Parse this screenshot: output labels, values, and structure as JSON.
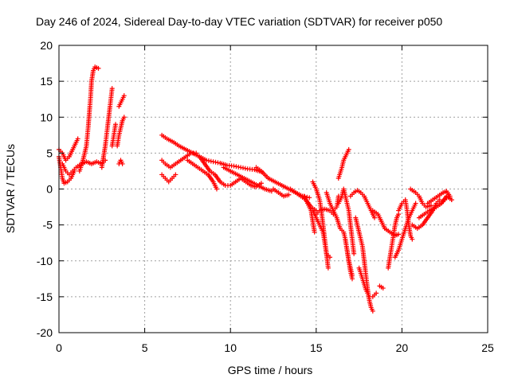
{
  "chart_data": {
    "type": "scatter",
    "title": "Day 246 of 2024, Sidereal Day-to-day VTEC variation (SDTVAR) for receiver p050",
    "xlabel": "GPS time / hours",
    "ylabel": "SDTVAR / TECUs",
    "xlim": [
      0,
      25
    ],
    "ylim": [
      -20,
      20
    ],
    "xticks": [
      "0",
      "5",
      "10",
      "15",
      "20",
      "25"
    ],
    "yticks": [
      "20",
      "15",
      "10",
      "5",
      "0",
      "-5",
      "-10",
      "-15",
      "-20"
    ],
    "grid": true,
    "marker": "plus",
    "color": "#ff0000",
    "series": [
      {
        "values": [
          [
            0.0,
            4.5
          ],
          [
            0.1,
            3.0
          ],
          [
            0.2,
            1.5
          ],
          [
            0.3,
            0.8
          ],
          [
            0.5,
            1.0
          ],
          [
            0.7,
            1.5
          ],
          [
            0.9,
            2.5
          ]
        ]
      },
      {
        "values": [
          [
            0.0,
            5.5
          ],
          [
            0.2,
            5.0
          ],
          [
            0.4,
            4.0
          ],
          [
            0.6,
            4.5
          ],
          [
            0.8,
            5.5
          ],
          [
            1.0,
            6.5
          ],
          [
            1.1,
            7.0
          ]
        ]
      },
      {
        "values": [
          [
            0.2,
            3.5
          ],
          [
            0.4,
            2.5
          ],
          [
            0.6,
            2.0
          ],
          [
            0.8,
            2.5
          ],
          [
            1.0,
            3.0
          ],
          [
            1.3,
            3.5
          ],
          [
            1.6,
            3.8
          ],
          [
            1.9,
            3.5
          ],
          [
            2.2,
            3.8
          ],
          [
            2.5,
            3.5
          ],
          [
            2.7,
            4.0
          ]
        ]
      },
      {
        "values": [
          [
            1.2,
            2.5
          ],
          [
            1.4,
            4.0
          ],
          [
            1.6,
            6.0
          ],
          [
            1.7,
            8.5
          ],
          [
            1.8,
            11.5
          ],
          [
            1.85,
            13.0
          ],
          [
            1.9,
            15.0
          ],
          [
            2.0,
            16.5
          ],
          [
            2.1,
            17.0
          ],
          [
            2.3,
            16.8
          ]
        ]
      },
      {
        "values": [
          [
            2.5,
            3.0
          ],
          [
            2.6,
            4.5
          ],
          [
            2.7,
            6.0
          ],
          [
            2.8,
            8.0
          ],
          [
            2.9,
            10.0
          ],
          [
            3.0,
            12.0
          ],
          [
            3.1,
            14.0
          ]
        ]
      },
      {
        "values": [
          [
            3.1,
            6.0
          ],
          [
            3.2,
            7.5
          ],
          [
            3.3,
            9.0
          ]
        ]
      },
      {
        "values": [
          [
            3.4,
            6.0
          ],
          [
            3.5,
            7.5
          ],
          [
            3.6,
            8.5
          ],
          [
            3.7,
            9.5
          ],
          [
            3.8,
            10.0
          ]
        ]
      },
      {
        "values": [
          [
            3.5,
            11.5
          ],
          [
            3.6,
            12.0
          ],
          [
            3.7,
            12.5
          ],
          [
            3.8,
            13.0
          ]
        ]
      },
      {
        "values": [
          [
            3.5,
            3.5
          ],
          [
            3.6,
            4.0
          ],
          [
            3.7,
            3.5
          ]
        ]
      },
      {
        "values": [
          [
            6.0,
            7.5
          ],
          [
            6.3,
            7.0
          ],
          [
            6.7,
            6.5
          ],
          [
            7.0,
            6.0
          ],
          [
            7.4,
            5.5
          ],
          [
            7.8,
            5.0
          ],
          [
            8.2,
            4.5
          ],
          [
            8.6,
            4.0
          ],
          [
            9.0,
            3.8
          ],
          [
            9.4,
            3.6
          ],
          [
            9.8,
            3.3
          ],
          [
            10.2,
            3.2
          ],
          [
            10.6,
            3.0
          ],
          [
            11.0,
            2.8
          ],
          [
            11.4,
            2.7
          ],
          [
            11.8,
            2.4
          ]
        ]
      },
      {
        "values": [
          [
            6.0,
            4.0
          ],
          [
            6.2,
            3.5
          ],
          [
            6.5,
            3.0
          ],
          [
            6.8,
            3.5
          ],
          [
            7.1,
            4.0
          ],
          [
            7.4,
            4.5
          ],
          [
            7.7,
            5.0
          ],
          [
            8.0,
            5.0
          ]
        ]
      },
      {
        "values": [
          [
            6.0,
            2.0
          ],
          [
            6.2,
            1.5
          ],
          [
            6.4,
            1.0
          ],
          [
            6.6,
            1.5
          ],
          [
            6.8,
            2.0
          ]
        ]
      },
      {
        "values": [
          [
            7.5,
            4.0
          ],
          [
            7.8,
            3.5
          ],
          [
            8.1,
            3.0
          ],
          [
            8.4,
            2.5
          ],
          [
            8.7,
            2.0
          ],
          [
            9.0,
            1.0
          ],
          [
            9.2,
            0.0
          ]
        ]
      },
      {
        "values": [
          [
            8.2,
            4.5
          ],
          [
            8.5,
            3.5
          ],
          [
            8.8,
            2.5
          ],
          [
            9.1,
            2.0
          ],
          [
            9.4,
            1.0
          ],
          [
            9.7,
            0.5
          ],
          [
            10.0,
            0.5
          ],
          [
            10.3,
            1.0
          ],
          [
            10.6,
            1.5
          ],
          [
            10.9,
            1.0
          ],
          [
            11.2,
            0.5
          ],
          [
            11.5,
            0.3
          ],
          [
            11.8,
            0.8
          ]
        ]
      },
      {
        "values": [
          [
            9.6,
            3.0
          ],
          [
            10.0,
            2.5
          ],
          [
            10.4,
            2.0
          ],
          [
            10.8,
            1.5
          ],
          [
            11.2,
            1.0
          ],
          [
            11.6,
            0.5
          ],
          [
            12.0,
            0.0
          ],
          [
            12.4,
            -0.3
          ]
        ]
      },
      {
        "values": [
          [
            11.5,
            3.0
          ],
          [
            11.8,
            2.5
          ],
          [
            12.2,
            1.5
          ],
          [
            12.6,
            1.0
          ],
          [
            13.0,
            0.5
          ],
          [
            13.4,
            0.0
          ],
          [
            13.8,
            -0.5
          ],
          [
            14.2,
            -1.0
          ],
          [
            14.6,
            -1.2
          ]
        ]
      },
      {
        "values": [
          [
            12.5,
            0.0
          ],
          [
            12.8,
            -0.5
          ],
          [
            13.1,
            -1.0
          ],
          [
            13.4,
            -0.8
          ]
        ]
      },
      {
        "values": [
          [
            13.5,
            0.0
          ],
          [
            13.8,
            -0.5
          ],
          [
            14.1,
            -1.0
          ],
          [
            14.4,
            -1.5
          ],
          [
            14.7,
            -2.5
          ],
          [
            15.0,
            -3.0
          ]
        ]
      },
      {
        "values": [
          [
            14.3,
            -1.0
          ],
          [
            14.5,
            -2.0
          ],
          [
            14.7,
            -3.0
          ],
          [
            14.8,
            -4.5
          ],
          [
            14.9,
            -6.0
          ]
        ]
      },
      {
        "values": [
          [
            14.8,
            -3.0
          ],
          [
            15.0,
            -4.0
          ],
          [
            15.2,
            -5.0
          ],
          [
            15.4,
            -6.0
          ],
          [
            15.5,
            -7.5
          ],
          [
            15.6,
            -9.0
          ],
          [
            15.7,
            -11.0
          ]
        ]
      },
      {
        "values": [
          [
            15.0,
            -3.5
          ],
          [
            15.2,
            -3.0
          ],
          [
            15.5,
            -2.8
          ],
          [
            15.8,
            -3.0
          ],
          [
            16.0,
            -3.5
          ]
        ]
      },
      {
        "values": [
          [
            14.8,
            1.0
          ],
          [
            15.0,
            0.0
          ],
          [
            15.2,
            -1.5
          ],
          [
            15.3,
            -3.0
          ],
          [
            15.4,
            -5.0
          ],
          [
            15.5,
            -7.0
          ],
          [
            15.6,
            -9.0
          ],
          [
            15.8,
            -9.5
          ]
        ]
      },
      {
        "values": [
          [
            15.6,
            -0.5
          ],
          [
            15.8,
            -2.0
          ],
          [
            16.0,
            -3.0
          ],
          [
            16.2,
            -2.5
          ],
          [
            16.3,
            -1.0
          ]
        ]
      },
      {
        "values": [
          [
            16.0,
            -3.0
          ],
          [
            16.2,
            -4.0
          ],
          [
            16.4,
            -5.5
          ],
          [
            16.6,
            -6.0
          ],
          [
            16.7,
            -7.0
          ],
          [
            16.8,
            -8.5
          ],
          [
            16.9,
            -10.0
          ],
          [
            17.0,
            -11.0
          ],
          [
            17.1,
            -12.0
          ]
        ]
      },
      {
        "values": [
          [
            16.3,
            -2.0
          ],
          [
            16.5,
            -1.0
          ],
          [
            16.6,
            0.0
          ],
          [
            16.7,
            -1.0
          ],
          [
            16.8,
            -2.0
          ],
          [
            16.9,
            -3.0
          ],
          [
            17.0,
            -5.0
          ],
          [
            17.1,
            -7.0
          ],
          [
            17.2,
            -9.0
          ]
        ]
      },
      {
        "values": [
          [
            16.3,
            1.5
          ],
          [
            16.5,
            3.0
          ],
          [
            16.6,
            4.0
          ],
          [
            16.8,
            5.0
          ],
          [
            16.9,
            5.5
          ]
        ]
      },
      {
        "values": [
          [
            16.7,
            -7.0
          ],
          [
            16.8,
            -8.5
          ],
          [
            16.9,
            -10.0
          ],
          [
            17.0,
            -11.5
          ],
          [
            17.1,
            -12.5
          ]
        ]
      },
      {
        "values": [
          [
            17.0,
            -1.0
          ],
          [
            17.2,
            -0.5
          ],
          [
            17.4,
            -0.2
          ],
          [
            17.6,
            -0.5
          ],
          [
            17.8,
            -1.0
          ],
          [
            18.0,
            -2.0
          ],
          [
            18.2,
            -3.0
          ],
          [
            18.4,
            -4.0
          ]
        ]
      },
      {
        "values": [
          [
            17.3,
            -4.0
          ],
          [
            17.5,
            -6.0
          ],
          [
            17.7,
            -8.0
          ],
          [
            17.8,
            -10.0
          ],
          [
            17.9,
            -12.0
          ],
          [
            18.0,
            -14.0
          ],
          [
            18.1,
            -15.5
          ],
          [
            18.2,
            -16.5
          ],
          [
            18.3,
            -17.0
          ]
        ]
      },
      {
        "values": [
          [
            17.5,
            -11.0
          ],
          [
            17.7,
            -12.5
          ],
          [
            17.9,
            -14.0
          ],
          [
            18.1,
            -15.0
          ],
          [
            18.3,
            -15.0
          ],
          [
            18.5,
            -14.5
          ]
        ]
      },
      {
        "values": [
          [
            18.3,
            -3.0
          ],
          [
            18.6,
            -3.5
          ],
          [
            18.8,
            -4.5
          ],
          [
            19.0,
            -5.5
          ],
          [
            19.3,
            -6.0
          ],
          [
            19.6,
            -6.5
          ],
          [
            19.8,
            -6.3
          ]
        ]
      },
      {
        "values": [
          [
            18.7,
            -13.5
          ],
          [
            18.9,
            -13.8
          ]
        ]
      },
      {
        "values": [
          [
            19.2,
            -11.0
          ],
          [
            19.3,
            -9.5
          ],
          [
            19.4,
            -8.0
          ],
          [
            19.5,
            -6.5
          ],
          [
            19.6,
            -5.0
          ],
          [
            19.7,
            -4.0
          ],
          [
            19.8,
            -3.5
          ]
        ]
      },
      {
        "values": [
          [
            19.6,
            -9.5
          ],
          [
            19.8,
            -8.5
          ],
          [
            20.0,
            -7.0
          ],
          [
            20.2,
            -5.5
          ],
          [
            20.4,
            -4.0
          ],
          [
            20.6,
            -3.0
          ],
          [
            20.8,
            -2.0
          ]
        ]
      },
      {
        "values": [
          [
            19.8,
            -3.0
          ],
          [
            20.0,
            -2.0
          ],
          [
            20.2,
            -1.5
          ],
          [
            20.3,
            -3.0
          ],
          [
            20.4,
            -5.0
          ],
          [
            20.5,
            -6.5
          ],
          [
            20.6,
            -7.0
          ]
        ]
      },
      {
        "values": [
          [
            20.6,
            -5.0
          ],
          [
            20.9,
            -5.5
          ],
          [
            21.2,
            -5.0
          ],
          [
            21.5,
            -4.0
          ],
          [
            21.8,
            -3.0
          ],
          [
            22.0,
            -2.0
          ],
          [
            22.2,
            -1.5
          ]
        ]
      },
      {
        "values": [
          [
            20.5,
            0.0
          ],
          [
            20.8,
            -0.5
          ],
          [
            21.0,
            -1.0
          ],
          [
            21.2,
            -2.0
          ],
          [
            21.4,
            -2.5
          ],
          [
            21.7,
            -2.3
          ]
        ]
      },
      {
        "values": [
          [
            21.0,
            -4.0
          ],
          [
            21.3,
            -3.5
          ],
          [
            21.6,
            -3.0
          ],
          [
            22.0,
            -2.5
          ],
          [
            22.3,
            -2.0
          ],
          [
            22.6,
            -1.0
          ],
          [
            22.9,
            -1.5
          ]
        ]
      },
      {
        "values": [
          [
            21.5,
            -2.0
          ],
          [
            21.8,
            -1.5
          ],
          [
            22.1,
            -1.0
          ],
          [
            22.4,
            -0.5
          ],
          [
            22.6,
            -0.3
          ],
          [
            22.8,
            -1.0
          ]
        ]
      },
      {
        "values": [
          [
            22.0,
            -2.5
          ],
          [
            22.3,
            -2.0
          ],
          [
            22.5,
            -1.5
          ],
          [
            22.7,
            -1.0
          ],
          [
            22.9,
            -1.5
          ]
        ]
      }
    ]
  }
}
